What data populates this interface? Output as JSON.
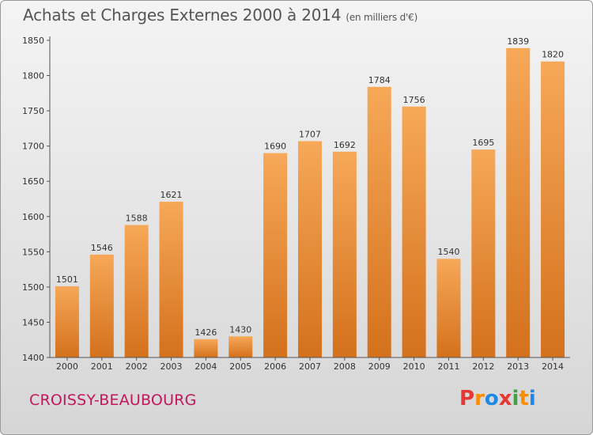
{
  "header": {
    "title": "Achats et Charges Externes 2000 à 2014",
    "unit": "(en milliers d'€)"
  },
  "footer": {
    "place": "CROISSY-BEAUBOURG",
    "brand": "Proxiti"
  },
  "colors": {
    "bar_light": "#f5a450",
    "bar_dark": "#d5721b",
    "axis_text": "#333333",
    "place": "#c2185b"
  },
  "chart_data": {
    "type": "bar",
    "title": "Achats et Charges Externes 2000 à 2014",
    "subtitle": "(en milliers d'€)",
    "categories": [
      "2000",
      "2001",
      "2002",
      "2003",
      "2004",
      "2005",
      "2006",
      "2007",
      "2008",
      "2009",
      "2010",
      "2011",
      "2012",
      "2013",
      "2014"
    ],
    "values": [
      1501,
      1546,
      1588,
      1621,
      1426,
      1430,
      1690,
      1707,
      1692,
      1784,
      1756,
      1540,
      1695,
      1839,
      1820
    ],
    "ylim": [
      1400,
      1850
    ],
    "yticks": [
      1400,
      1450,
      1500,
      1550,
      1600,
      1650,
      1700,
      1750,
      1800,
      1850
    ],
    "grid": false,
    "data_labels": true
  }
}
